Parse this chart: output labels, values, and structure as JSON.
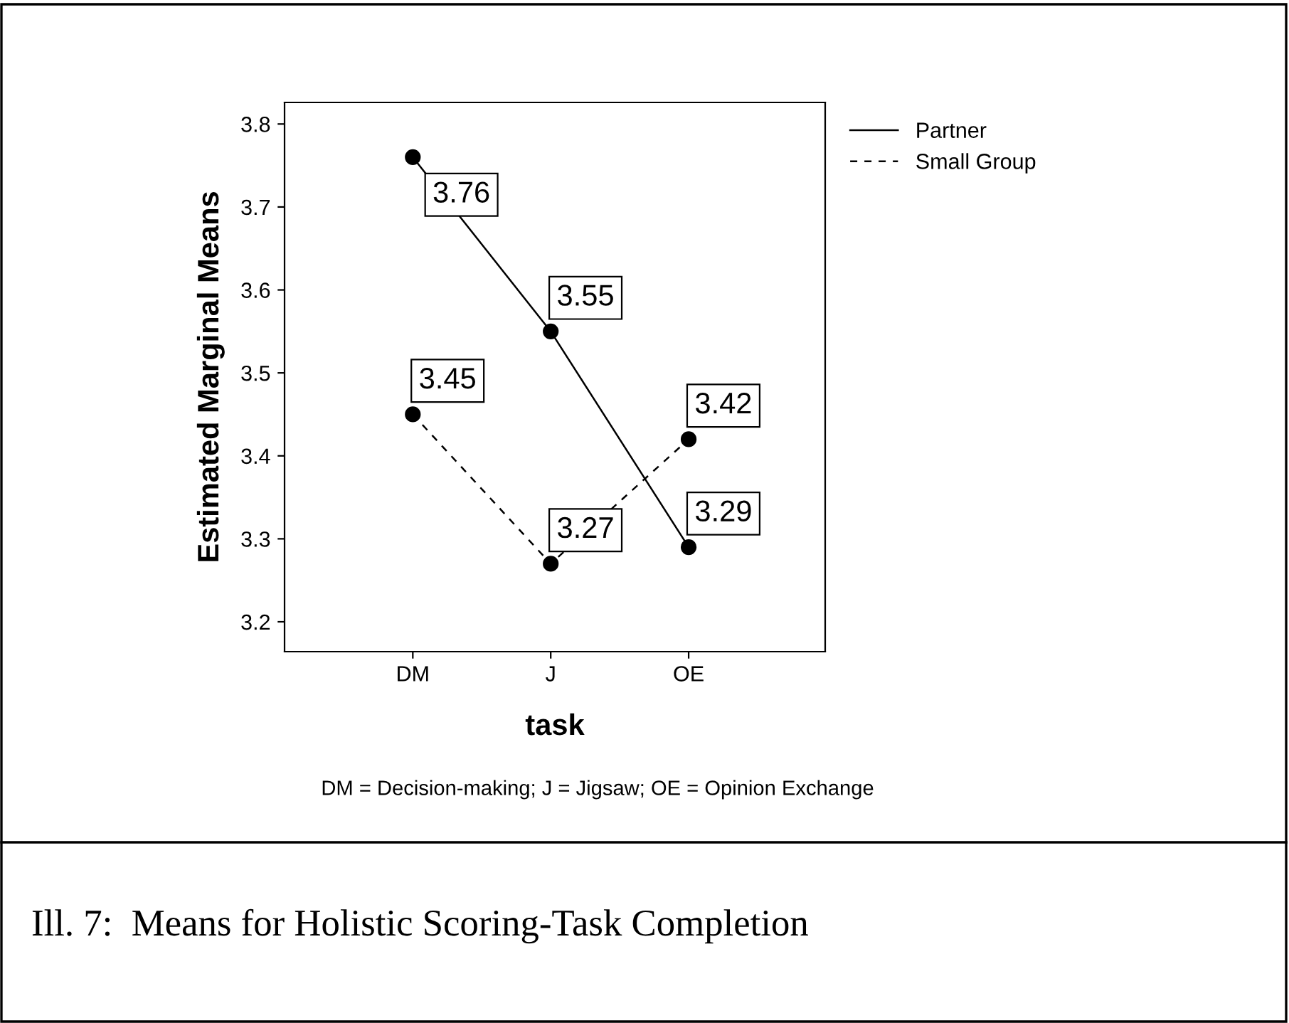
{
  "chart_data": {
    "type": "line",
    "xlabel": "task",
    "ylabel": "Estimated Marginal Means",
    "categories": [
      "DM",
      "J",
      "OE"
    ],
    "series": [
      {
        "name": "Partner",
        "color": "#000000",
        "values": [
          3.76,
          3.55,
          3.29
        ],
        "line_style": "solid"
      },
      {
        "name": "Small Group",
        "color": "#000000",
        "values": [
          3.45,
          3.27,
          3.42
        ],
        "line_style": "dashed"
      }
    ],
    "ylim": [
      3.164,
      3.826
    ],
    "yticks": [
      3.2,
      3.3,
      3.4,
      3.5,
      3.6,
      3.7,
      3.8
    ],
    "marker": "circle",
    "data_labels": true,
    "grid": false,
    "legend": "top right",
    "annotations": [
      "DM = Decision-making; J = Jigsaw; OE = Opinion Exchange",
      "Ill. 7:  Means for Holistic Scoring-Task Completion"
    ]
  }
}
